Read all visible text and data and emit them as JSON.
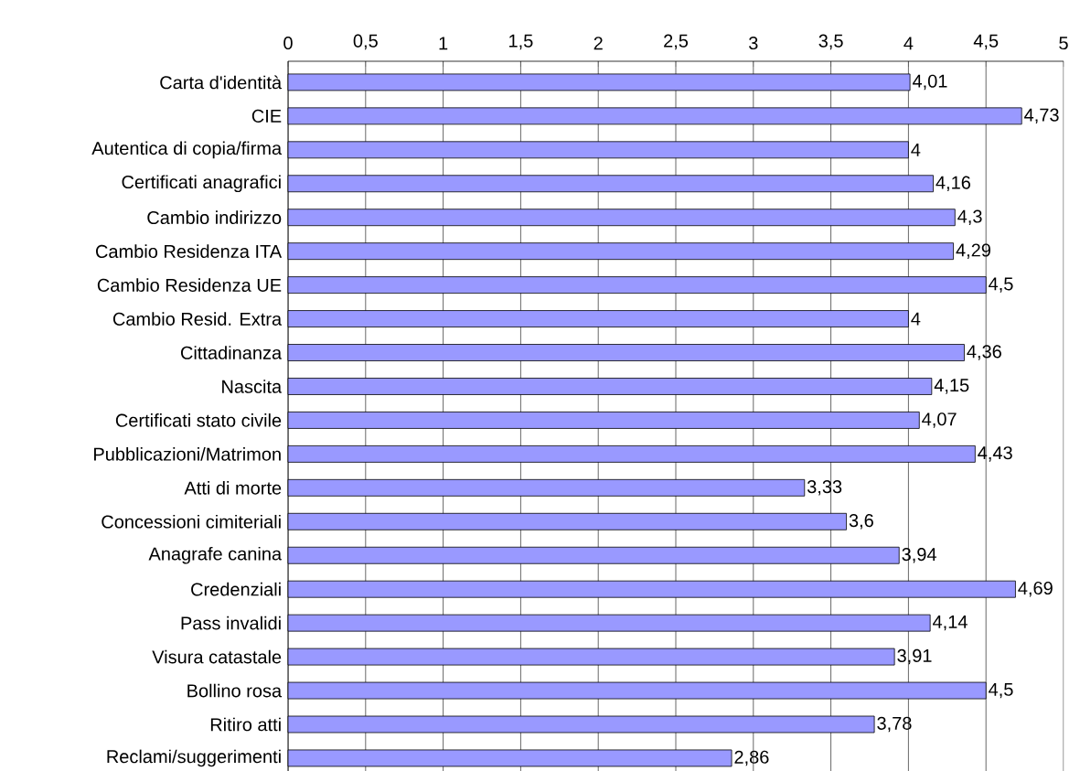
{
  "chart_data": {
    "type": "bar",
    "orientation": "horizontal",
    "color": "#9999ff",
    "grid": "x",
    "categories": [
      "Carta d'identità",
      "CIE",
      "Autentica di copia/firma",
      "Certificati anagrafici",
      "Cambio indirizzo",
      "Cambio Residenza ITA",
      "Cambio Residenza UE",
      "Cambio Resid. Extra",
      "Cittadinanza",
      "Nascita",
      "Certificati stato civile",
      "Pubblicazioni/Matrimon",
      "Atti di morte",
      "Concessioni cimiteriali",
      "Anagrafe canina",
      "Credenziali",
      "Pass invalidi",
      "Visura catastale",
      "Bollino rosa",
      "Ritiro atti",
      "Reclami/suggerimenti"
    ],
    "values": [
      4.01,
      4.73,
      4,
      4.16,
      4.3,
      4.29,
      4.5,
      4,
      4.36,
      4.15,
      4.07,
      4.43,
      3.33,
      3.6,
      3.94,
      4.69,
      4.14,
      3.91,
      4.5,
      3.78,
      2.86
    ],
    "value_labels": [
      "4,01",
      "4,73",
      "4",
      "4,16",
      "4,3",
      "4,29",
      "4,5",
      "4",
      "4,36",
      "4,15",
      "4,07",
      "4,43",
      "3,33",
      "3,6",
      "3,94",
      "4,69",
      "4,14",
      "3,91",
      "4,5",
      "3,78",
      "2,86"
    ],
    "xlim": [
      0,
      5
    ],
    "xticks": [
      0,
      {
        "value": 0.5,
        "label": "0,5"
      },
      1,
      {
        "value": 1.5,
        "label": "1,5"
      },
      2,
      {
        "value": 2.5,
        "label": "2,5"
      },
      3,
      {
        "value": 3.5,
        "label": "3,5"
      },
      4,
      {
        "value": 4.5,
        "label": "4,5"
      },
      5
    ]
  }
}
